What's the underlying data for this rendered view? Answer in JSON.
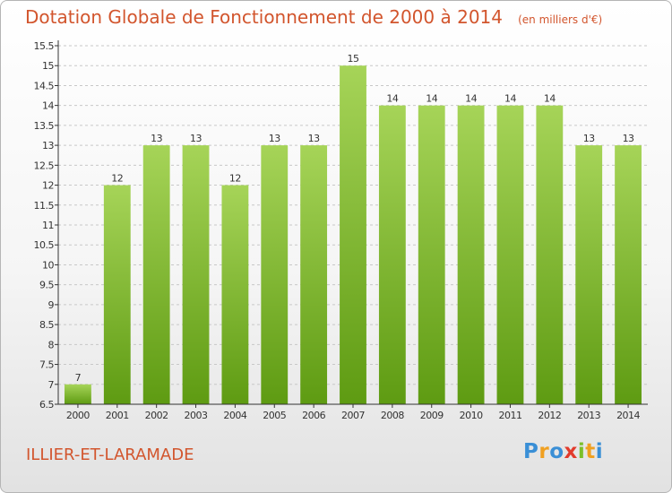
{
  "header": {
    "title": "Dotation Globale de Fonctionnement de 2000 à 2014",
    "subtitle": "(en milliers d'€)"
  },
  "footer": {
    "commune": "ILLIER-ET-LARAMADE",
    "logo_letters": [
      {
        "char": "P",
        "color": "#3a8fd6"
      },
      {
        "char": "r",
        "color": "#f0a020"
      },
      {
        "char": "o",
        "color": "#3a8fd6"
      },
      {
        "char": "x",
        "color": "#e23b2c"
      },
      {
        "char": "i",
        "color": "#7bbf2a"
      },
      {
        "char": "t",
        "color": "#f0a020"
      },
      {
        "char": "i",
        "color": "#3a8fd6"
      }
    ]
  },
  "colors": {
    "bar_top": "#a6d458",
    "bar_bottom": "#5e9b12",
    "title": "#d2552d",
    "axis": "#333333",
    "grid": "#c8c8c8"
  },
  "chart_data": {
    "type": "bar",
    "categories": [
      "2000",
      "2001",
      "2002",
      "2003",
      "2004",
      "2005",
      "2006",
      "2007",
      "2008",
      "2009",
      "2010",
      "2011",
      "2012",
      "2013",
      "2014"
    ],
    "values": [
      7,
      12,
      13,
      13,
      12,
      13,
      13,
      15,
      14,
      14,
      14,
      14,
      14,
      13,
      13
    ],
    "value_labels": [
      "7",
      "12",
      "13",
      "13",
      "12",
      "13",
      "13",
      "15",
      "14",
      "14",
      "14",
      "14",
      "14",
      "13",
      "13"
    ],
    "title": "Dotation Globale de Fonctionnement de 2000 à 2014",
    "subtitle": "(en milliers d'€)",
    "xlabel": "",
    "ylabel": "",
    "ylim": [
      6.5,
      15.5
    ],
    "yticks": [
      "6.5",
      "7",
      "7.5",
      "8",
      "8.5",
      "9",
      "9.5",
      "10",
      "10.5",
      "11",
      "11.5",
      "12",
      "12.5",
      "13",
      "13.5",
      "14",
      "14.5",
      "15",
      "15.5"
    ],
    "grid": "horizontal-dashed",
    "legend": "none"
  }
}
